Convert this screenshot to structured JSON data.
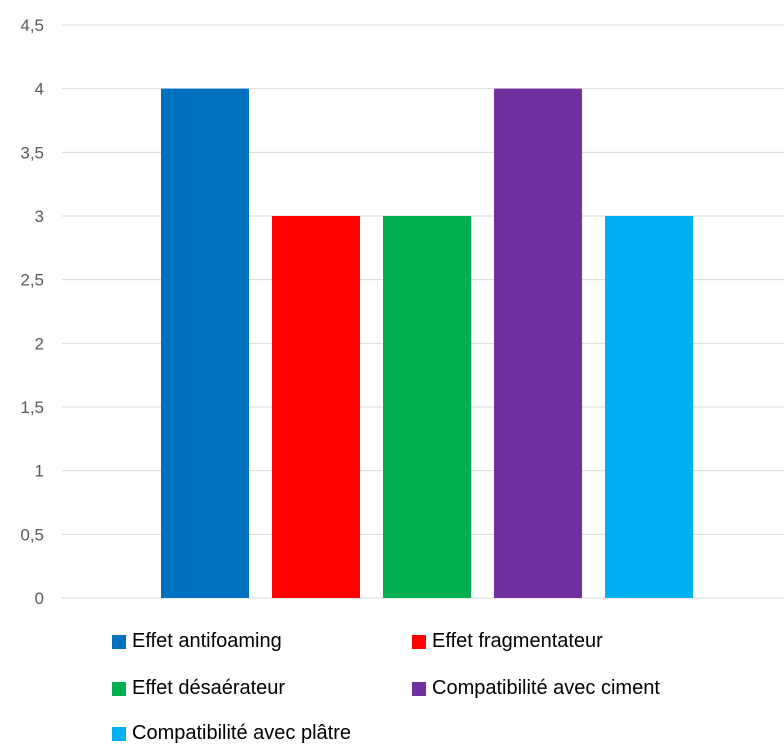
{
  "chart_data": {
    "type": "bar",
    "title": "",
    "xlabel": "",
    "ylabel": "",
    "ylim": [
      0,
      4.5
    ],
    "y_ticks": [
      "0",
      "0,5",
      "1",
      "1,5",
      "2",
      "2,5",
      "3",
      "3,5",
      "4",
      "4,5"
    ],
    "grid": true,
    "legend_position": "bottom",
    "series": [
      {
        "name": "Effet antifoaming",
        "value": 4,
        "color": "#0070C0"
      },
      {
        "name": "Effet fragmentateur",
        "value": 3,
        "color": "#FF0000"
      },
      {
        "name": "Effet désaérateur",
        "value": 3,
        "color": "#00B050"
      },
      {
        "name": "Compatibilité avec ciment",
        "value": 4,
        "color": "#7030A0"
      },
      {
        "name": "Compatibilité avec plâtre",
        "value": 3,
        "color": "#00B0F0"
      }
    ]
  }
}
